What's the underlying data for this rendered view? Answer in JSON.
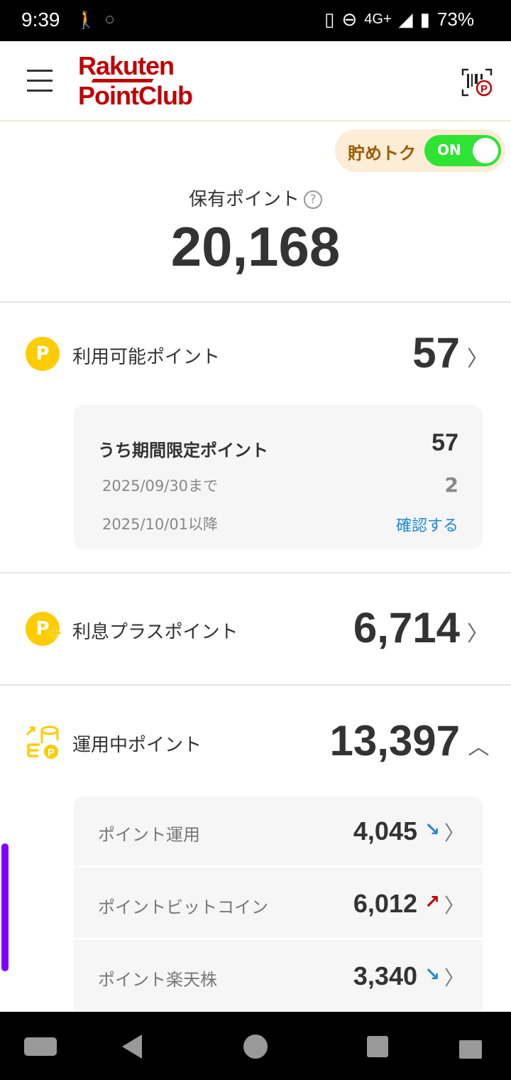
{
  "status": {
    "time": "9:39",
    "network": "4G+",
    "battery": "73%"
  },
  "header": {
    "logo_line1": "Rakuten",
    "logo_line2": "PointClub"
  },
  "savings_toggle": {
    "label": "貯めトク",
    "state": "ON"
  },
  "total": {
    "label": "保有ポイント",
    "help": "?",
    "value": "20,168"
  },
  "available": {
    "label": "利用可能ポイント",
    "value": "57",
    "limited": {
      "label": "うち期間限定ポイント",
      "value": "57",
      "rows": [
        {
          "label": "2025/09/30まで",
          "value": "2"
        },
        {
          "label": "2025/10/01以降",
          "value": "確認する"
        }
      ]
    }
  },
  "interest": {
    "label": "利息プラスポイント",
    "value": "6,714"
  },
  "investing": {
    "label": "運用中ポイント",
    "value": "13,397",
    "items": [
      {
        "label": "ポイント運用",
        "value": "4,045",
        "trend": "down"
      },
      {
        "label": "ポイントビットコイン",
        "value": "6,012",
        "trend": "up"
      },
      {
        "label": "ポイント楽天株",
        "value": "3,340",
        "trend": "down"
      }
    ]
  },
  "colors": {
    "brand": "#bf0000",
    "coin": "#ffcc00",
    "toggle": "#2ee333",
    "link": "#1a8ad4",
    "up": "#c00000",
    "down": "#2a8ac8",
    "scrollbar": "#7f00ff"
  }
}
